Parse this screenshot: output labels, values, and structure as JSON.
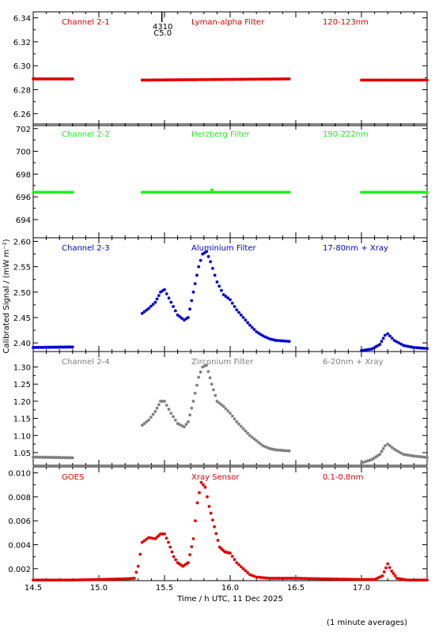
{
  "xlabel": "Time / h UTC, 11 Dec 2025",
  "ylabel": "Calibrated Signal / (mW m⁻²)",
  "footnote": "(1 minute averages)",
  "marker": {
    "line1": "4310",
    "line2": "C5.0",
    "x": 15.48
  },
  "chart_data": [
    {
      "type": "scatter",
      "name": "Channel 2-1",
      "color": "#dd0000",
      "labels": [
        "Channel 2-1",
        "Lyman-alpha Filter",
        "120-123nm"
      ],
      "xlim": [
        14.5,
        17.5
      ],
      "ylim": [
        6.25,
        6.345
      ],
      "yticks": [
        6.26,
        6.28,
        6.3,
        6.32,
        6.34
      ],
      "ytick_labels": [
        "6.26",
        "6.28",
        "6.30",
        "6.32",
        "6.34"
      ],
      "segments": [
        {
          "x": [
            14.5,
            14.8
          ],
          "y": [
            6.289,
            6.289
          ]
        },
        {
          "x": [
            15.33,
            16.45
          ],
          "y": [
            6.288,
            6.289
          ]
        },
        {
          "x": [
            17.0,
            17.5
          ],
          "y": [
            6.288,
            6.288
          ]
        }
      ]
    },
    {
      "type": "scatter",
      "name": "Channel 2-2",
      "color": "#22ee22",
      "labels": [
        "Channel 2-2",
        "Herzberg Filter",
        "190-222nm"
      ],
      "xlim": [
        14.5,
        17.5
      ],
      "ylim": [
        692.4,
        702.4
      ],
      "yticks": [
        694,
        696,
        698,
        700,
        702
      ],
      "ytick_labels": [
        "694",
        "696",
        "698",
        "700",
        "702"
      ],
      "segments": [
        {
          "x": [
            14.5,
            14.8
          ],
          "y": [
            696.4,
            696.4
          ]
        },
        {
          "x": [
            15.33,
            16.45
          ],
          "y": [
            696.4,
            696.4
          ]
        },
        {
          "x": [
            17.0,
            17.5
          ],
          "y": [
            696.4,
            696.4
          ]
        }
      ],
      "bumps": [
        [
          15.86,
          696.6
        ]
      ]
    },
    {
      "type": "scatter",
      "name": "Channel 2-3",
      "color": "#0000cc",
      "labels": [
        "Channel 2-3",
        "Aluminium Filter",
        "17-80nm + Xray"
      ],
      "xlim": [
        14.5,
        17.5
      ],
      "ylim": [
        2.383,
        2.607
      ],
      "yticks": [
        2.4,
        2.45,
        2.5,
        2.55,
        2.6
      ],
      "ytick_labels": [
        "2.40",
        "2.45",
        "2.50",
        "2.55",
        "2.60"
      ],
      "segments": [
        {
          "x": [
            14.5,
            14.8
          ],
          "y": [
            2.391,
            2.392
          ]
        }
      ],
      "curve": [
        [
          15.33,
          2.458
        ],
        [
          15.38,
          2.468
        ],
        [
          15.43,
          2.48
        ],
        [
          15.47,
          2.5
        ],
        [
          15.5,
          2.505
        ],
        [
          15.55,
          2.48
        ],
        [
          15.6,
          2.455
        ],
        [
          15.65,
          2.445
        ],
        [
          15.68,
          2.45
        ],
        [
          15.72,
          2.5
        ],
        [
          15.76,
          2.55
        ],
        [
          15.79,
          2.575
        ],
        [
          15.82,
          2.58
        ],
        [
          15.85,
          2.56
        ],
        [
          15.9,
          2.52
        ],
        [
          15.95,
          2.495
        ],
        [
          16.0,
          2.485
        ],
        [
          16.05,
          2.465
        ],
        [
          16.1,
          2.45
        ],
        [
          16.15,
          2.435
        ],
        [
          16.2,
          2.422
        ],
        [
          16.25,
          2.414
        ],
        [
          16.3,
          2.408
        ],
        [
          16.35,
          2.405
        ],
        [
          16.45,
          2.403
        ],
        null,
        [
          17.0,
          2.385
        ],
        [
          17.08,
          2.388
        ],
        [
          17.14,
          2.397
        ],
        [
          17.18,
          2.415
        ],
        [
          17.2,
          2.418
        ],
        [
          17.25,
          2.405
        ],
        [
          17.32,
          2.395
        ],
        [
          17.4,
          2.391
        ],
        [
          17.5,
          2.389
        ]
      ]
    },
    {
      "type": "scatter",
      "name": "Channel 2-4",
      "color": "#7f7f7f",
      "labels": [
        "Channel 2-4",
        "Zirconium Filter",
        "6-20nm + Xray"
      ],
      "xlim": [
        14.5,
        17.5
      ],
      "ylim": [
        1.013,
        1.345
      ],
      "yticks": [
        1.05,
        1.1,
        1.15,
        1.2,
        1.25,
        1.3
      ],
      "ytick_labels": [
        "1.05",
        "1.10",
        "1.15",
        "1.20",
        "1.25",
        "1.30"
      ],
      "segments": [
        {
          "x": [
            14.5,
            14.8
          ],
          "y": [
            1.037,
            1.035
          ]
        }
      ],
      "curve": [
        [
          15.33,
          1.13
        ],
        [
          15.38,
          1.145
        ],
        [
          15.43,
          1.17
        ],
        [
          15.47,
          1.2
        ],
        [
          15.5,
          1.2
        ],
        [
          15.55,
          1.165
        ],
        [
          15.6,
          1.135
        ],
        [
          15.65,
          1.125
        ],
        [
          15.68,
          1.14
        ],
        [
          15.72,
          1.2
        ],
        [
          15.76,
          1.27
        ],
        [
          15.79,
          1.3
        ],
        [
          15.82,
          1.305
        ],
        [
          15.86,
          1.25
        ],
        [
          15.9,
          1.2
        ],
        [
          15.95,
          1.185
        ],
        [
          16.0,
          1.165
        ],
        [
          16.05,
          1.14
        ],
        [
          16.1,
          1.12
        ],
        [
          16.15,
          1.1
        ],
        [
          16.2,
          1.085
        ],
        [
          16.25,
          1.07
        ],
        [
          16.3,
          1.062
        ],
        [
          16.35,
          1.058
        ],
        [
          16.45,
          1.055
        ],
        null,
        [
          17.0,
          1.02
        ],
        [
          17.08,
          1.03
        ],
        [
          17.14,
          1.045
        ],
        [
          17.18,
          1.07
        ],
        [
          17.2,
          1.075
        ],
        [
          17.25,
          1.06
        ],
        [
          17.32,
          1.045
        ],
        [
          17.4,
          1.04
        ],
        [
          17.5,
          1.036
        ]
      ]
    },
    {
      "type": "scatter",
      "name": "GOES",
      "color": "#dd0000",
      "labels": [
        "GOES",
        "Xray Sensor",
        "0.1-0.8nm"
      ],
      "xlim": [
        14.5,
        17.5
      ],
      "ylim": [
        0.001,
        0.0105
      ],
      "yticks": [
        0.002,
        0.004,
        0.006,
        0.008,
        0.01
      ],
      "ytick_labels": [
        "0.002",
        "0.004",
        "0.006",
        "0.008",
        "0.010"
      ],
      "xticks": [
        14.5,
        15.0,
        15.5,
        16.0,
        16.5,
        17.0
      ],
      "xtick_labels": [
        "14.5",
        "15.0",
        "15.5",
        "16.0",
        "16.5",
        "17.0"
      ],
      "curve": [
        [
          14.5,
          0.00105
        ],
        [
          14.8,
          0.00105
        ],
        [
          15.0,
          0.0011
        ],
        [
          15.2,
          0.00115
        ],
        [
          15.27,
          0.0012
        ],
        [
          15.3,
          0.0022
        ],
        [
          15.33,
          0.0042
        ],
        [
          15.38,
          0.0046
        ],
        [
          15.43,
          0.0045
        ],
        [
          15.47,
          0.0049
        ],
        [
          15.5,
          0.0049
        ],
        [
          15.53,
          0.0042
        ],
        [
          15.57,
          0.003
        ],
        [
          15.6,
          0.0025
        ],
        [
          15.64,
          0.0022
        ],
        [
          15.68,
          0.0025
        ],
        [
          15.72,
          0.0045
        ],
        [
          15.75,
          0.0075
        ],
        [
          15.78,
          0.0092
        ],
        [
          15.81,
          0.0088
        ],
        [
          15.84,
          0.0072
        ],
        [
          15.88,
          0.0055
        ],
        [
          15.92,
          0.0038
        ],
        [
          15.96,
          0.0034
        ],
        [
          16.0,
          0.0033
        ],
        [
          16.05,
          0.0025
        ],
        [
          16.1,
          0.002
        ],
        [
          16.15,
          0.0015
        ],
        [
          16.2,
          0.0013
        ],
        [
          16.3,
          0.0012
        ],
        [
          16.5,
          0.0012
        ],
        [
          16.7,
          0.00115
        ],
        [
          17.0,
          0.0011
        ],
        [
          17.1,
          0.0011
        ],
        [
          17.16,
          0.0014
        ],
        [
          17.2,
          0.0024
        ],
        [
          17.23,
          0.0018
        ],
        [
          17.27,
          0.0012
        ],
        [
          17.35,
          0.00105
        ],
        [
          17.5,
          0.00105
        ]
      ]
    }
  ]
}
